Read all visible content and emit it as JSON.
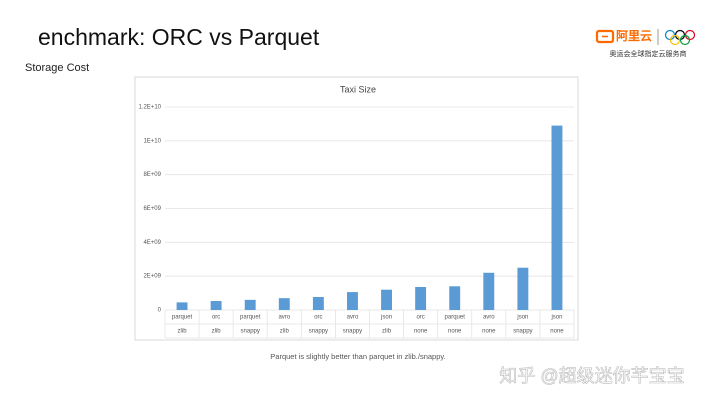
{
  "slide": {
    "title": "enchmark: ORC vs Parquet",
    "subtitle": "Storage Cost",
    "logo_text": "阿里云",
    "logo_tagline": "奥运会全球指定云服务商",
    "caption": "Parquet is slightly better than parquet in zlib./snappy.",
    "watermark": "知乎 @超级迷你芊宝宝"
  },
  "chart_data": {
    "type": "bar",
    "title": "Taxi Size",
    "categories": [
      "parquet",
      "orc",
      "parquet",
      "avro",
      "orc",
      "avro",
      "json",
      "orc",
      "parquet",
      "avro",
      "json",
      "json"
    ],
    "sub_categories": [
      "zlib",
      "zlib",
      "snappy",
      "zlib",
      "snappy",
      "snappy",
      "zlib",
      "none",
      "none",
      "none",
      "snappy",
      "none"
    ],
    "values": [
      450000000,
      530000000,
      600000000,
      700000000,
      770000000,
      1060000000,
      1200000000,
      1360000000,
      1400000000,
      2200000000,
      2500000000,
      10900000000
    ],
    "color": "#5b9bd5",
    "ylim": [
      0,
      12000000000
    ],
    "yticks": [
      0,
      {
        "value": 2000000000,
        "label": "2E+09"
      },
      {
        "value": 4000000000,
        "label": "4E+09"
      },
      {
        "value": 6000000000,
        "label": "6E+09"
      },
      {
        "value": 8000000000,
        "label": "8E+09"
      },
      {
        "value": 10000000000,
        "label": "1E+10"
      },
      {
        "value": 12000000000,
        "label": "1.2E+10"
      }
    ],
    "grid": true
  }
}
